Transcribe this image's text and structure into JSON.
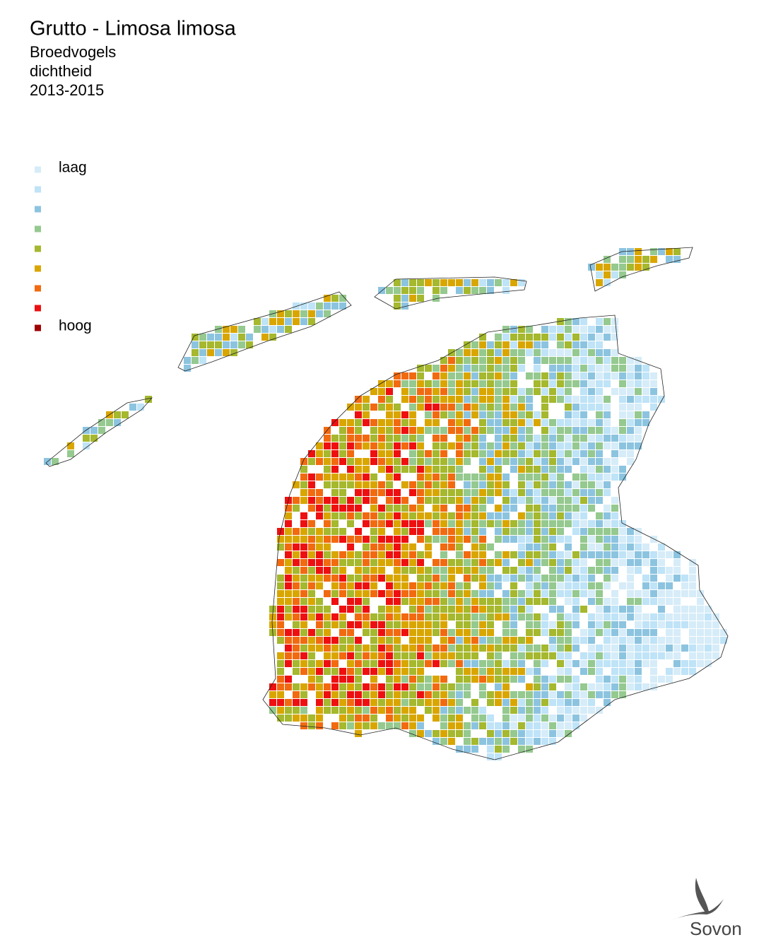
{
  "header": {
    "title": "Grutto - Limosa limosa",
    "subtitle": [
      "Broedvogels",
      "dichtheid",
      "2013-2015"
    ]
  },
  "legend": {
    "classes": [
      {
        "color": "#d6ecf8",
        "label": "laag"
      },
      {
        "color": "#bfe3f7"
      },
      {
        "color": "#8cc4e0"
      },
      {
        "color": "#95c98f"
      },
      {
        "color": "#a5b82e"
      },
      {
        "color": "#d9a600"
      },
      {
        "color": "#f26a10"
      },
      {
        "color": "#ee1010"
      },
      {
        "color": "#a00000",
        "label": "hoog"
      }
    ]
  },
  "logo": {
    "text": "Sovon"
  }
}
